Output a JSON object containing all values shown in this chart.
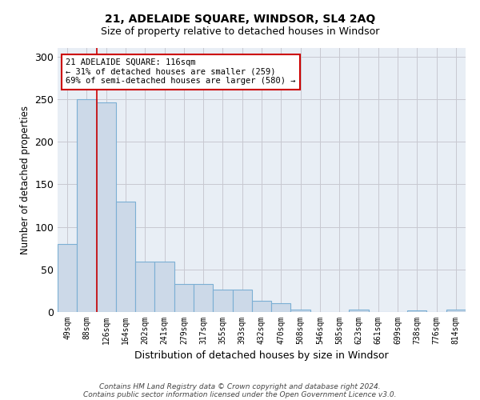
{
  "title1": "21, ADELAIDE SQUARE, WINDSOR, SL4 2AQ",
  "title2": "Size of property relative to detached houses in Windsor",
  "xlabel": "Distribution of detached houses by size in Windsor",
  "ylabel": "Number of detached properties",
  "categories": [
    "49sqm",
    "88sqm",
    "126sqm",
    "164sqm",
    "202sqm",
    "241sqm",
    "279sqm",
    "317sqm",
    "355sqm",
    "393sqm",
    "432sqm",
    "470sqm",
    "508sqm",
    "546sqm",
    "585sqm",
    "623sqm",
    "661sqm",
    "699sqm",
    "738sqm",
    "776sqm",
    "814sqm"
  ],
  "values": [
    80,
    250,
    246,
    130,
    59,
    59,
    33,
    33,
    26,
    26,
    13,
    10,
    3,
    0,
    0,
    3,
    0,
    0,
    2,
    0,
    3
  ],
  "bar_color": "#ccd9e8",
  "bar_edgecolor": "#7bafd4",
  "grid_color": "#c8c8d0",
  "red_line_x": 1.5,
  "annotation_title": "21 ADELAIDE SQUARE: 116sqm",
  "annotation_line1": "← 31% of detached houses are smaller (259)",
  "annotation_line2": "69% of semi-detached houses are larger (580) →",
  "annotation_box_color": "#ffffff",
  "annotation_border_color": "#cc0000",
  "footer1": "Contains HM Land Registry data © Crown copyright and database right 2024.",
  "footer2": "Contains public sector information licensed under the Open Government Licence v3.0.",
  "ylim": [
    0,
    310
  ],
  "yticks": [
    0,
    50,
    100,
    150,
    200,
    250,
    300
  ],
  "background_color": "#e8eef5"
}
